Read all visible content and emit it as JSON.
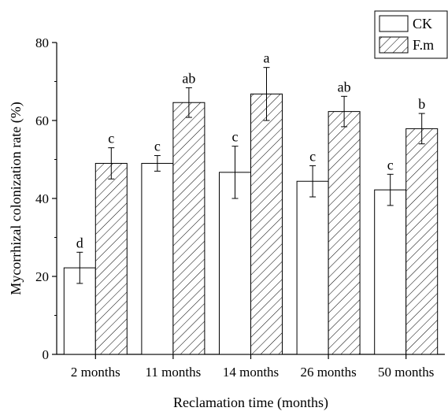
{
  "chart_data": {
    "type": "bar",
    "title": "",
    "xlabel": "Reclamation time (months)",
    "ylabel": "Mycorrhizal colonization rate (%)",
    "ylim": [
      0,
      80
    ],
    "yticks": [
      0,
      20,
      40,
      60,
      80
    ],
    "categories": [
      "2 months",
      "11 months",
      "14 months",
      "26 months",
      "50 months"
    ],
    "series": [
      {
        "name": "CK",
        "fill": "plain",
        "values": [
          22.2,
          49.0,
          46.7,
          44.4,
          42.2
        ],
        "errors": [
          4.0,
          2.0,
          6.7,
          4.0,
          4.0
        ],
        "letters": [
          "d",
          "c",
          "c",
          "c",
          "c"
        ]
      },
      {
        "name": "F.m",
        "fill": "hatched",
        "values": [
          49.0,
          64.6,
          66.8,
          62.3,
          57.9
        ],
        "errors": [
          4.0,
          3.8,
          6.8,
          3.9,
          3.9
        ],
        "letters": [
          "c",
          "ab",
          "a",
          "ab",
          "b"
        ]
      }
    ],
    "grid": false,
    "legend_position": "top-right",
    "colors": {
      "bar_edge": "#000000",
      "bar_fill": "#ffffff",
      "hatch": "#000000"
    }
  }
}
